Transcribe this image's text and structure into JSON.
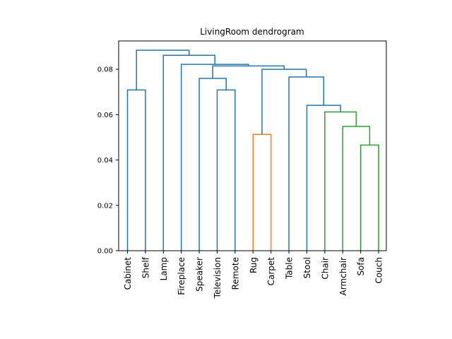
{
  "chart_data": {
    "type": "dendrogram",
    "title": "LivingRoom dendrogram",
    "xlabel": "",
    "ylabel": "",
    "ylim": [
      0,
      0.0925
    ],
    "yticks": [
      "0.00",
      "0.02",
      "0.04",
      "0.06",
      "0.08"
    ],
    "ytick_values": [
      0,
      0.02,
      0.04,
      0.06,
      0.08
    ],
    "leaves": [
      "Cabinet",
      "Shelf",
      "Lamp",
      "Fireplace",
      "Speaker",
      "Television",
      "Remote",
      "Rug",
      "Carpet",
      "Table",
      "Stool",
      "Chair",
      "Armchair",
      "Sofa",
      "Couch"
    ],
    "merges": [
      {
        "left": "Sofa",
        "right": "Couch",
        "height": 0.0466,
        "color": "#2ca02c"
      },
      {
        "left": "Armchair",
        "right": "Sofa+Couch",
        "height": 0.0548,
        "color": "#2ca02c"
      },
      {
        "left": "Chair",
        "right": "Armchair+Sofa+Couch",
        "height": 0.0612,
        "color": "#2ca02c"
      },
      {
        "left": "Stool",
        "right": "Chair cluster",
        "height": 0.0641,
        "color": "#1f77b4"
      },
      {
        "left": "Table",
        "right": "Stool cluster",
        "height": 0.0766,
        "color": "#1f77b4"
      },
      {
        "left": "Rug",
        "right": "Carpet",
        "height": 0.0513,
        "color": "#ff7f0e"
      },
      {
        "left": "Rug+Carpet",
        "right": "Table cluster",
        "height": 0.08,
        "color": "#1f77b4"
      },
      {
        "left": "Television",
        "right": "Remote",
        "height": 0.0709,
        "color": "#1f77b4"
      },
      {
        "left": "Speaker",
        "right": "Television+Remote",
        "height": 0.076,
        "color": "#1f77b4"
      },
      {
        "left": "Speaker cluster",
        "right": "Rug cluster",
        "height": 0.0815,
        "color": "#1f77b4"
      },
      {
        "left": "Fireplace",
        "right": "Speaker+Rug cluster",
        "height": 0.0822,
        "color": "#1f77b4"
      },
      {
        "left": "Lamp",
        "right": "Fireplace cluster",
        "height": 0.0862,
        "color": "#1f77b4"
      },
      {
        "left": "Cabinet",
        "right": "Shelf",
        "height": 0.0709,
        "color": "#1f77b4"
      },
      {
        "left": "Cabinet+Shelf",
        "right": "Lamp cluster",
        "height": 0.0884,
        "color": "#1f77b4"
      }
    ],
    "colors": {
      "default": "#1f77b4",
      "cluster_orange": "#ff7f0e",
      "cluster_green": "#2ca02c"
    },
    "grid": false,
    "legend": "none"
  }
}
